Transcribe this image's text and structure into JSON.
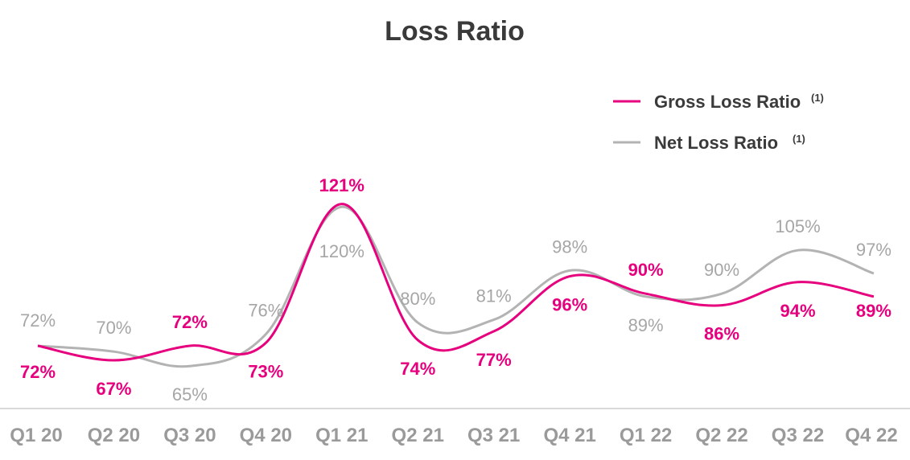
{
  "chart_data": {
    "type": "line",
    "title": "Loss Ratio",
    "categories": [
      "Q1 20",
      "Q2 20",
      "Q3 20",
      "Q4 20",
      "Q1 21",
      "Q2 21",
      "Q3 21",
      "Q4 21",
      "Q1 22",
      "Q2 22",
      "Q3 22",
      "Q4 22"
    ],
    "series": [
      {
        "name": "Gross Loss Ratio",
        "footnote": "(1)",
        "color": "#e6007e",
        "values": [
          72,
          67,
          72,
          73,
          121,
          74,
          77,
          96,
          90,
          86,
          94,
          89
        ],
        "labels": [
          "72%",
          "67%",
          "72%",
          "73%",
          "121%",
          "74%",
          "77%",
          "96%",
          "90%",
          "86%",
          "94%",
          "89%"
        ]
      },
      {
        "name": "Net Loss Ratio",
        "footnote": "(1)",
        "color": "#b3b3b3",
        "values": [
          72,
          70,
          65,
          76,
          120,
          80,
          81,
          98,
          89,
          90,
          105,
          97
        ],
        "labels": [
          "72%",
          "70%",
          "65%",
          "76%",
          "120%",
          "80%",
          "81%",
          "98%",
          "89%",
          "90%",
          "105%",
          "97%"
        ]
      }
    ],
    "legend_position": "top-right",
    "grid": false
  }
}
